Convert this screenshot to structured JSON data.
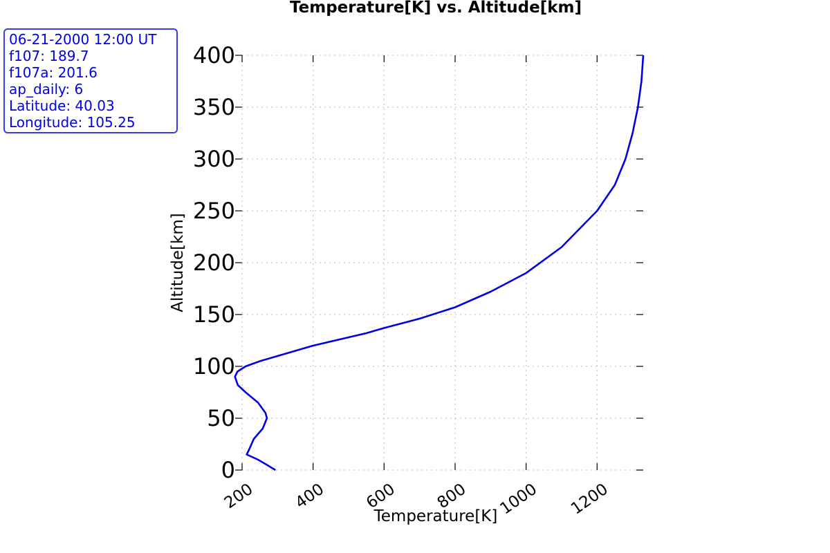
{
  "chart_data": {
    "type": "line",
    "title": "Temperature[K] vs. Altitude[km]",
    "xlabel": "Temperature[K]",
    "ylabel": "Altitude[km]",
    "xlim": [
      200,
      1330
    ],
    "ylim": [
      0,
      400
    ],
    "xticks": [
      200,
      400,
      600,
      800,
      1000,
      1200
    ],
    "yticks": [
      0,
      50,
      100,
      150,
      200,
      250,
      300,
      350,
      400
    ],
    "grid": true,
    "series": [
      {
        "color": "#0000e6",
        "x": [
          294,
          270,
          245,
          213,
          220,
          233,
          258,
          270,
          266,
          245,
          210,
          188,
          180,
          187,
          210,
          250,
          300,
          400,
          500,
          550,
          600,
          700,
          800,
          900,
          1000,
          1100,
          1200,
          1250,
          1280,
          1300,
          1315,
          1325,
          1330
        ],
        "y": [
          0,
          5,
          10,
          15,
          20,
          30,
          40,
          50,
          55,
          65,
          75,
          82,
          90,
          95,
          100,
          105,
          110,
          120,
          128,
          132,
          137,
          146,
          157,
          172,
          190,
          215,
          250,
          275,
          300,
          325,
          350,
          375,
          400
        ]
      }
    ]
  },
  "info": {
    "lines": [
      "06-21-2000 12:00 UT",
      "f107: 189.7",
      "f107a: 201.6",
      "ap_daily: 6",
      "Latitude: 40.03",
      "Longitude: 105.25"
    ],
    "text_color": "#0000ee",
    "border_color": "#3a3ae6"
  }
}
